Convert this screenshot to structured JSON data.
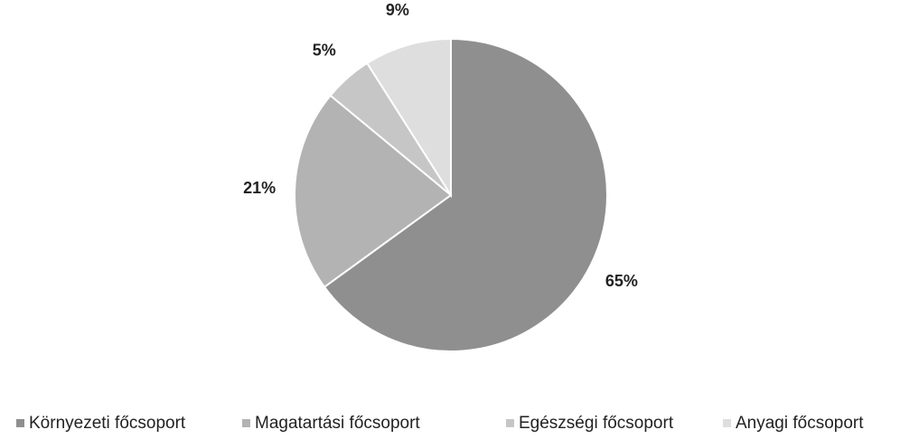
{
  "chart_data": {
    "type": "pie",
    "categories": [
      "Környezeti főcsoport",
      "Magatartási főcsoport",
      "Egészségi főcsoport",
      "Anyagi főcsoport"
    ],
    "values": [
      65,
      21,
      5,
      9
    ],
    "value_labels": [
      "65%",
      "21%",
      "5%",
      "9%"
    ],
    "colors": [
      "#8f8f8f",
      "#b3b3b3",
      "#c6c6c6",
      "#dedede"
    ],
    "legend": "bottom"
  }
}
